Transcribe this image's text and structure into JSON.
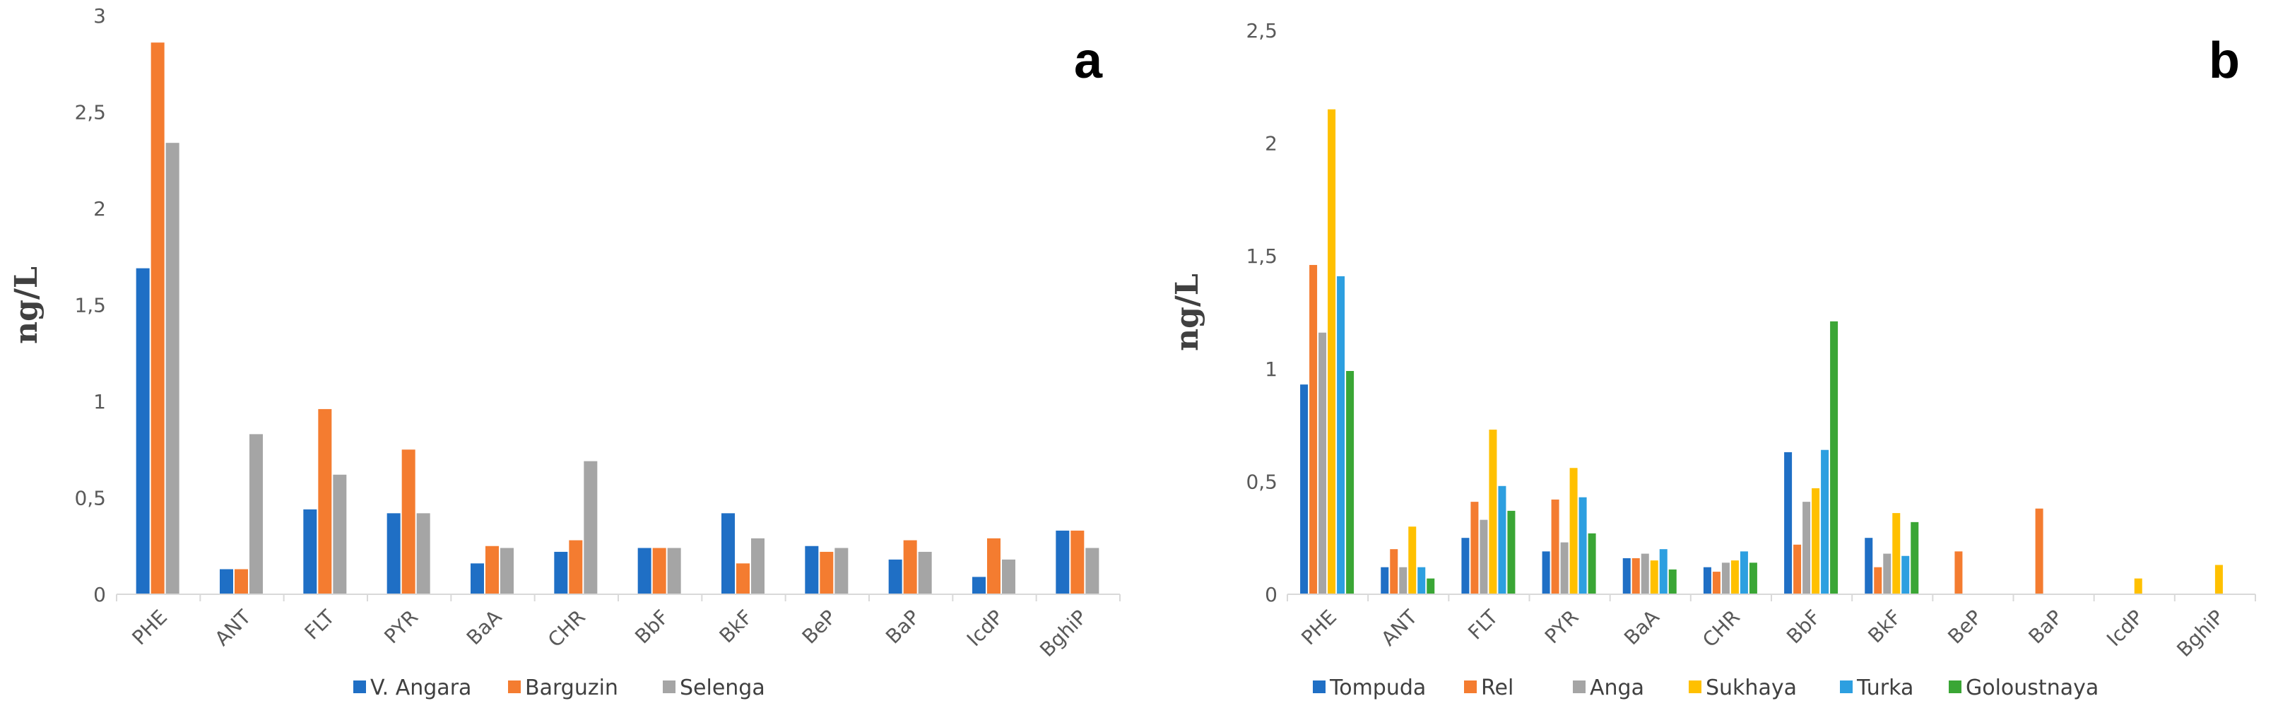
{
  "chart_data": [
    {
      "type": "bar",
      "panel_label": "a",
      "ylabel": "ng/L",
      "ylim": [
        0,
        3
      ],
      "yticks": [
        "0",
        "0,5",
        "1",
        "1,5",
        "2",
        "2,5",
        "3"
      ],
      "categories": [
        "PHE",
        "ANT",
        "FLT",
        "PYR",
        "BaA",
        "CHR",
        "BbF",
        "BkF",
        "BeP",
        "BaP",
        "IcdP",
        "BghiP"
      ],
      "legend_position": "bottom",
      "series": [
        {
          "name": "V. Angara",
          "color": "#1F6FC5",
          "values": [
            1.69,
            0.13,
            0.44,
            0.42,
            0.16,
            0.22,
            0.24,
            0.42,
            0.25,
            0.18,
            0.09,
            0.33
          ]
        },
        {
          "name": "Barguzin",
          "color": "#F47C30",
          "values": [
            2.86,
            0.13,
            0.96,
            0.75,
            0.25,
            0.28,
            0.24,
            0.16,
            0.22,
            0.28,
            0.29,
            0.33
          ]
        },
        {
          "name": "Selenga",
          "color": "#A5A5A5",
          "values": [
            2.34,
            0.83,
            0.62,
            0.42,
            0.24,
            0.69,
            0.24,
            0.29,
            0.24,
            0.22,
            0.18,
            0.24
          ]
        }
      ]
    },
    {
      "type": "bar",
      "panel_label": "b",
      "ylabel": "ng/L",
      "ylim": [
        0,
        2.5
      ],
      "yticks": [
        "0",
        "0,5",
        "1",
        "1,5",
        "2",
        "2,5"
      ],
      "categories": [
        "PHE",
        "ANT",
        "FLT",
        "PYR",
        "BaA",
        "CHR",
        "BbF",
        "BkF",
        "BeP",
        "BaP",
        "IcdP",
        "BghiP"
      ],
      "legend_position": "bottom",
      "series": [
        {
          "name": "Tompuda",
          "color": "#1F6FC5",
          "values": [
            0.93,
            0.12,
            0.25,
            0.19,
            0.16,
            0.12,
            0.63,
            0.25,
            0,
            0,
            0,
            0
          ]
        },
        {
          "name": "Rel",
          "color": "#F47C30",
          "values": [
            1.46,
            0.2,
            0.41,
            0.42,
            0.16,
            0.1,
            0.22,
            0.12,
            0.19,
            0.38,
            0,
            0
          ]
        },
        {
          "name": "Anga",
          "color": "#A5A5A5",
          "values": [
            1.16,
            0.12,
            0.33,
            0.23,
            0.18,
            0.14,
            0.41,
            0.18,
            0,
            0,
            0,
            0
          ]
        },
        {
          "name": "Sukhaya",
          "color": "#FFC000",
          "values": [
            2.15,
            0.3,
            0.73,
            0.56,
            0.15,
            0.15,
            0.47,
            0.36,
            0,
            0,
            0.07,
            0.13
          ]
        },
        {
          "name": "Turka",
          "color": "#2D9FE0",
          "values": [
            1.41,
            0.12,
            0.48,
            0.43,
            0.2,
            0.19,
            0.64,
            0.17,
            0,
            0,
            0,
            0
          ]
        },
        {
          "name": "Goloustnaya",
          "color": "#3AA635",
          "values": [
            0.99,
            0.07,
            0.37,
            0.27,
            0.11,
            0.14,
            1.21,
            0.32,
            0,
            0,
            0,
            0
          ]
        }
      ]
    }
  ]
}
